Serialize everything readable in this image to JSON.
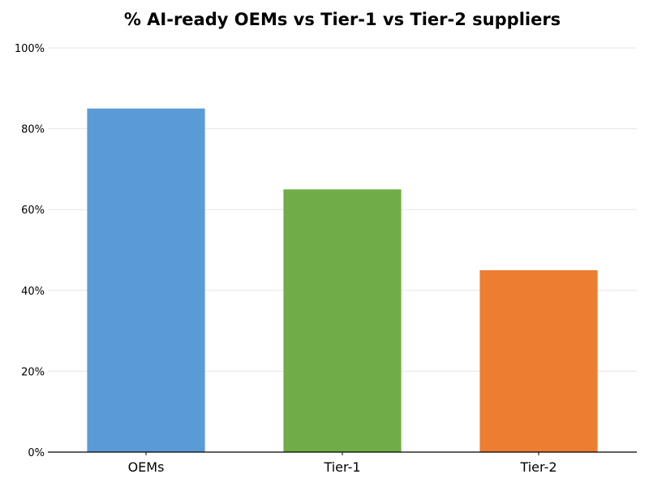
{
  "chart_data": {
    "type": "bar",
    "title": "% AI-ready OEMs vs Tier-1 vs Tier-2 suppliers",
    "xlabel": "",
    "ylabel": "",
    "categories": [
      "OEMs",
      "Tier-1",
      "Tier-2"
    ],
    "values": [
      85,
      65,
      45
    ],
    "colors": [
      "#5B9BD5",
      "#70AD47",
      "#ED7D31"
    ],
    "ylim": [
      0,
      100
    ],
    "yticks": [
      0,
      20,
      40,
      60,
      80,
      100
    ],
    "ytick_labels": [
      "0%",
      "20%",
      "40%",
      "60%",
      "80%",
      "100%"
    ],
    "grid": "horizontal",
    "legend": "none"
  }
}
